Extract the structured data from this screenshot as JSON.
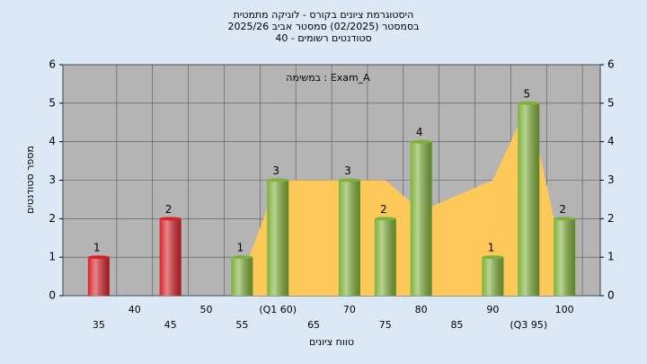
{
  "chart_data": {
    "type": "bar",
    "title_lines": [
      "היסטוגרמת ציונים בקורס - לוגיקה מתמטית",
      "בסמסטר  (02/2025)  סמסטר אביב 2025/26",
      "סטודנטים רשומים - 40"
    ],
    "annotation": "במשימה : Exam_A",
    "xlabel": "טווח ציונים",
    "ylabel": "מספר סטודנטים",
    "xlim": [
      30,
      105
    ],
    "xticks": [
      35,
      40,
      45,
      50,
      55,
      {
        "value": 60,
        "label": "(Q1 60)"
      },
      65,
      70,
      75,
      80,
      85,
      90,
      {
        "value": 95,
        "label": "(Q3 95)"
      },
      100
    ],
    "ylim": [
      0,
      6
    ],
    "yticks": [
      0,
      1,
      2,
      3,
      4,
      5,
      6
    ],
    "y2lim": [
      0,
      6
    ],
    "y2ticks": [
      0,
      1,
      2,
      3,
      4,
      5,
      6
    ],
    "grid": true,
    "curve": {
      "color": "#ffc95a",
      "x": [
        56,
        60,
        75,
        80,
        90,
        95,
        99
      ],
      "values": [
        1,
        3,
        3,
        2.2,
        3,
        5,
        1.6
      ]
    },
    "bars": {
      "x": [
        35,
        45,
        55,
        60,
        70,
        75,
        80,
        90,
        95,
        100
      ],
      "values": [
        1,
        2,
        1,
        3,
        3,
        2,
        4,
        1,
        5,
        2
      ],
      "colors": [
        "#d8232a",
        "#d8232a",
        "#7fb13a",
        "#7fb13a",
        "#7fb13a",
        "#7fb13a",
        "#7fb13a",
        "#7fb13a",
        "#7fb13a",
        "#7fb13a"
      ]
    }
  }
}
